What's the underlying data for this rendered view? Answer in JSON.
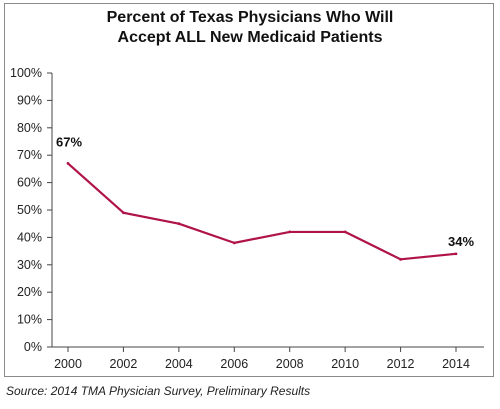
{
  "chart_data": {
    "type": "line",
    "title_line1": "Percent of Texas Physicians Who Will",
    "title_line2": "Accept ALL New Medicaid Patients",
    "source": "Source: 2014 TMA Physician Survey, Preliminary Results",
    "x": [
      "2000",
      "2002",
      "2004",
      "2006",
      "2008",
      "2010",
      "2012",
      "2014"
    ],
    "series": [
      {
        "values": [
          67,
          49,
          45,
          38,
          42,
          42,
          32,
          34
        ],
        "color": "#b0134a"
      }
    ],
    "y_ticks": [
      "0%",
      "10%",
      "20%",
      "30%",
      "40%",
      "50%",
      "60%",
      "70%",
      "80%",
      "90%",
      "100%"
    ],
    "ylim": [
      0,
      100
    ],
    "grid": false,
    "data_labels": [
      {
        "index": 0,
        "text": "67%"
      },
      {
        "index": 7,
        "text": "34%"
      }
    ]
  }
}
